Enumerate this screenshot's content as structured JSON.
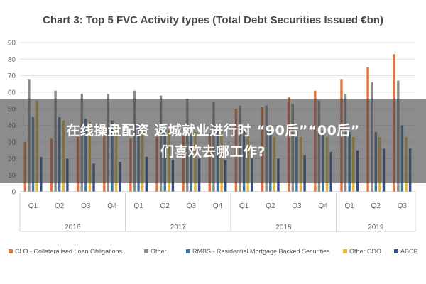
{
  "chart_data": {
    "type": "bar",
    "title": "Chart 3: Top 5 FVC Activity types (Total Debt Securities Issued €bn)",
    "categories": [
      "Q1",
      "Q2",
      "Q3",
      "Q4",
      "Q1",
      "Q2",
      "Q3",
      "Q4",
      "Q1",
      "Q2",
      "Q3",
      "Q4",
      "Q1",
      "Q2",
      "Q3"
    ],
    "years": [
      {
        "label": "2016",
        "quarters": 4
      },
      {
        "label": "2017",
        "quarters": 4
      },
      {
        "label": "2018",
        "quarters": 4
      },
      {
        "label": "2019",
        "quarters": 3
      }
    ],
    "ylim": [
      0,
      90
    ],
    "yticks": [
      0,
      10,
      20,
      30,
      40,
      50,
      60,
      70,
      80,
      90
    ],
    "grid": true,
    "legend_position": "bottom",
    "series": [
      {
        "name": "CLO - Collateralised Loan Obligations",
        "color": "#e8703a",
        "values": [
          30,
          32,
          33,
          34,
          32,
          33,
          34,
          35,
          50,
          51,
          57,
          61,
          68,
          75,
          83
        ]
      },
      {
        "name": "Other",
        "color": "#8c8c8c",
        "values": [
          68,
          61,
          59,
          59,
          61,
          58,
          56,
          54,
          52,
          52,
          53,
          55,
          59,
          66,
          67
        ]
      },
      {
        "name": "RMBS - Residential Mortgage Backed Securities",
        "color": "#3a78a8",
        "values": [
          45,
          45,
          44,
          43,
          41,
          39,
          39,
          38,
          37,
          37,
          37,
          37,
          36,
          36,
          40
        ]
      },
      {
        "name": "Other CDO",
        "color": "#e8b830",
        "values": [
          55,
          43,
          42,
          40,
          38,
          37,
          36,
          36,
          34,
          33,
          33,
          33,
          33,
          33,
          33
        ]
      },
      {
        "name": "ABCP",
        "color": "#2f4f8f",
        "values": [
          21,
          20,
          17,
          18,
          21,
          19,
          20,
          19,
          20,
          20,
          22,
          24,
          25,
          26,
          26
        ]
      }
    ]
  },
  "overlay": {
    "line1": "在线操盘配资 返城就业进行时 “90后”“00后”",
    "line2": "们喜欢去哪工作?"
  }
}
